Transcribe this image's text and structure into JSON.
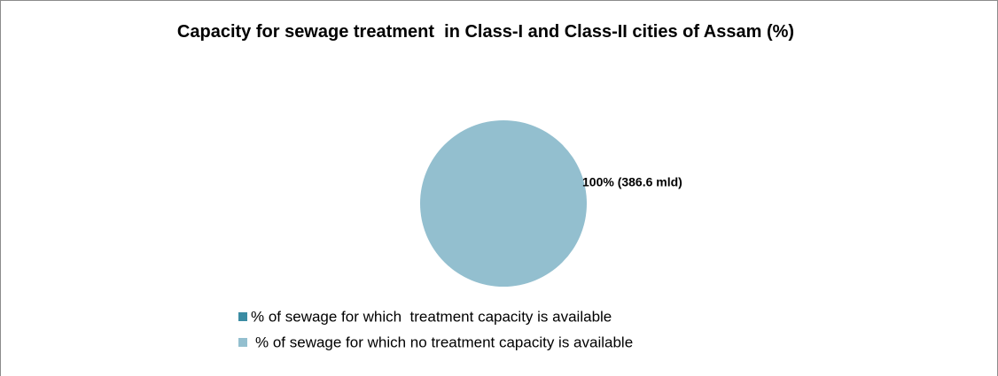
{
  "chart_data": {
    "type": "pie",
    "title": "Capacity for sewage treatment  in Class-I and Class-II cities of Assam (%)",
    "categories": [
      "% of sewage for which  treatment capacity is available",
      "% of sewage for which no treatment capacity is available"
    ],
    "values": [
      0,
      100
    ],
    "value_labels": [
      null,
      "100%  (386.6 mld)"
    ],
    "colors": [
      "#3b8ca3",
      "#93bfcf"
    ],
    "legend": "bottom"
  }
}
